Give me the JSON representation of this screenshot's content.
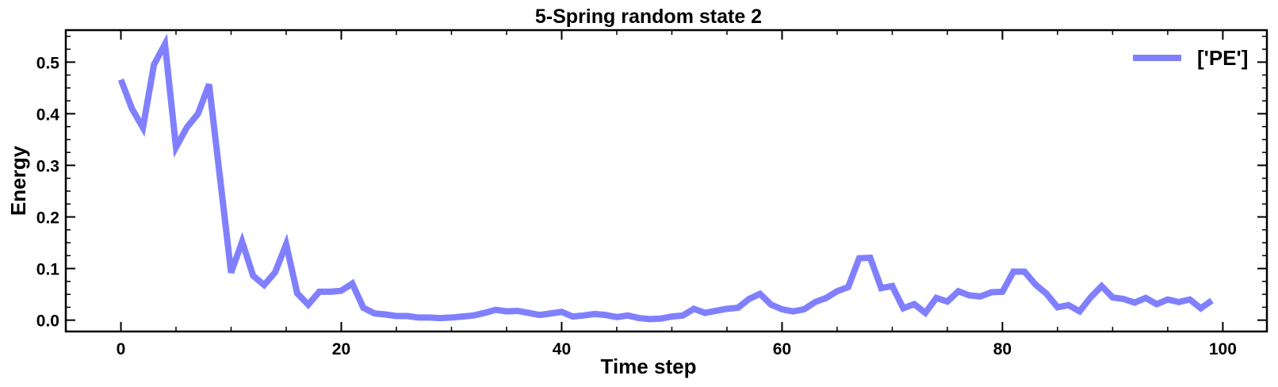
{
  "chart_data": {
    "type": "line",
    "title": "5-Spring random state 2",
    "xlabel": "Time step",
    "ylabel": "Energy",
    "xlim": [
      -5,
      104
    ],
    "ylim": [
      -0.022,
      0.562
    ],
    "x_ticks": [
      0,
      20,
      40,
      60,
      80,
      100
    ],
    "y_ticks": [
      0.0,
      0.1,
      0.2,
      0.3,
      0.4,
      0.5
    ],
    "x_tick_labels": [
      "0",
      "20",
      "40",
      "60",
      "80",
      "100"
    ],
    "y_tick_labels": [
      "0.0",
      "0.1",
      "0.2",
      "0.3",
      "0.4",
      "0.5"
    ],
    "grid": false,
    "legend_position": "top-right",
    "series": [
      {
        "name": "['PE']",
        "color": "#8080ff",
        "x": [
          0,
          1,
          2,
          3,
          4,
          5,
          6,
          7,
          8,
          9,
          10,
          11,
          12,
          13,
          14,
          15,
          16,
          17,
          18,
          19,
          20,
          21,
          22,
          23,
          24,
          25,
          26,
          27,
          28,
          29,
          30,
          31,
          32,
          33,
          34,
          35,
          36,
          37,
          38,
          39,
          40,
          41,
          42,
          43,
          44,
          45,
          46,
          47,
          48,
          49,
          50,
          51,
          52,
          53,
          54,
          55,
          56,
          57,
          58,
          59,
          60,
          61,
          62,
          63,
          64,
          65,
          66,
          67,
          68,
          69,
          70,
          71,
          72,
          73,
          74,
          75,
          76,
          77,
          78,
          79,
          80,
          81,
          82,
          83,
          84,
          85,
          86,
          87,
          88,
          89,
          90,
          91,
          92,
          93,
          94,
          95,
          96,
          97,
          98,
          99
        ],
        "values": [
          0.466,
          0.41,
          0.373,
          0.495,
          0.535,
          0.335,
          0.374,
          0.4,
          0.457,
          0.275,
          0.092,
          0.152,
          0.086,
          0.068,
          0.093,
          0.147,
          0.052,
          0.03,
          0.055,
          0.055,
          0.057,
          0.071,
          0.024,
          0.013,
          0.011,
          0.008,
          0.008,
          0.005,
          0.005,
          0.004,
          0.005,
          0.007,
          0.009,
          0.014,
          0.02,
          0.017,
          0.018,
          0.014,
          0.01,
          0.013,
          0.016,
          0.007,
          0.009,
          0.012,
          0.01,
          0.006,
          0.009,
          0.004,
          0.002,
          0.003,
          0.007,
          0.009,
          0.022,
          0.014,
          0.018,
          0.022,
          0.024,
          0.041,
          0.051,
          0.03,
          0.021,
          0.017,
          0.021,
          0.035,
          0.043,
          0.056,
          0.064,
          0.12,
          0.121,
          0.062,
          0.066,
          0.023,
          0.031,
          0.014,
          0.043,
          0.036,
          0.056,
          0.048,
          0.046,
          0.054,
          0.055,
          0.094,
          0.094,
          0.069,
          0.051,
          0.025,
          0.029,
          0.017,
          0.044,
          0.066,
          0.044,
          0.041,
          0.034,
          0.043,
          0.031,
          0.04,
          0.035,
          0.04,
          0.023,
          0.038
        ]
      }
    ]
  }
}
